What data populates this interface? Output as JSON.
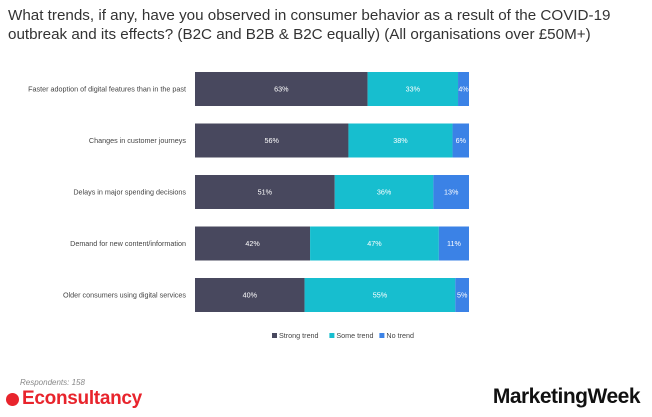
{
  "title": "What trends, if any, have you observed in consumer behavior as a result of the COVID-19 outbreak and its effects? (B2C and B2B & B2C equally) (All organisations over £50M+)",
  "footer": {
    "respondents": "Respondents: 158",
    "brand_left": "Econsultancy",
    "brand_right": "MarketingWeek"
  },
  "chart_data": {
    "type": "bar",
    "orientation": "horizontal",
    "stacked": true,
    "categories": [
      "Faster adoption of digital features than in the past",
      "Changes in customer journeys",
      "Delays in major spending decisions",
      "Demand for new content/information",
      "Older consumers using digital services"
    ],
    "series": [
      {
        "name": "Strong trend",
        "color": "#48485e",
        "label_color": "#ffffff",
        "values": [
          63,
          56,
          51,
          42,
          40
        ]
      },
      {
        "name": "Some trend",
        "color": "#17becf",
        "label_color": "#ffffff",
        "values": [
          33,
          38,
          36,
          47,
          55
        ]
      },
      {
        "name": "No trend",
        "color": "#3b82e6",
        "label_color": "#ffffff",
        "values": [
          4,
          6,
          13,
          11,
          5
        ]
      }
    ],
    "value_suffix": "%",
    "xlim": [
      0,
      100
    ],
    "grid": false,
    "legend_position": "bottom"
  }
}
